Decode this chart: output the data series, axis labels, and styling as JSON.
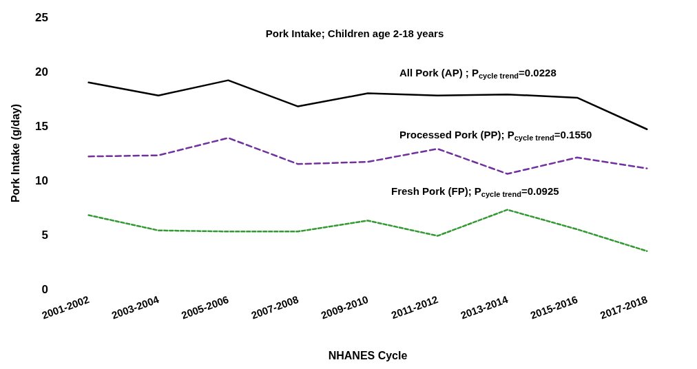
{
  "chart_data": {
    "type": "line",
    "title": "Pork Intake; Children age 2-18 years",
    "xlabel": "NHANES Cycle",
    "ylabel": "Pork Intake (g/day)",
    "categories": [
      "2001-2002",
      "2003-2004",
      "2005-2006",
      "2007-2008",
      "2009-2010",
      "2011-2012",
      "2013-2014",
      "2015-2016",
      "2017-2018"
    ],
    "ylim": [
      0,
      25
    ],
    "yticks": [
      0,
      5,
      10,
      15,
      20,
      25
    ],
    "grid": false,
    "legend": false,
    "marker": "none",
    "series": [
      {
        "name": "All Pork (AP) ; P$_{cycle trend}$=0.0228",
        "color": "#000000",
        "line_style": "solid",
        "values": [
          19.0,
          17.8,
          19.2,
          16.8,
          18.0,
          17.8,
          17.9,
          17.6,
          14.7
        ]
      },
      {
        "name": "Processed Pork (PP); P$_{cycle trend}$=0.1550",
        "color": "#7030a0",
        "line_style": "dashed",
        "values": [
          12.2,
          12.3,
          13.9,
          11.5,
          11.7,
          12.9,
          10.6,
          12.1,
          11.1
        ]
      },
      {
        "name": "Fresh Pork (FP); P$_{cycle trend}$=0.0925",
        "color": "#339933",
        "line_style": "dotted",
        "values": [
          6.8,
          5.4,
          5.3,
          5.3,
          6.3,
          4.9,
          7.3,
          5.5,
          3.5
        ]
      }
    ]
  }
}
